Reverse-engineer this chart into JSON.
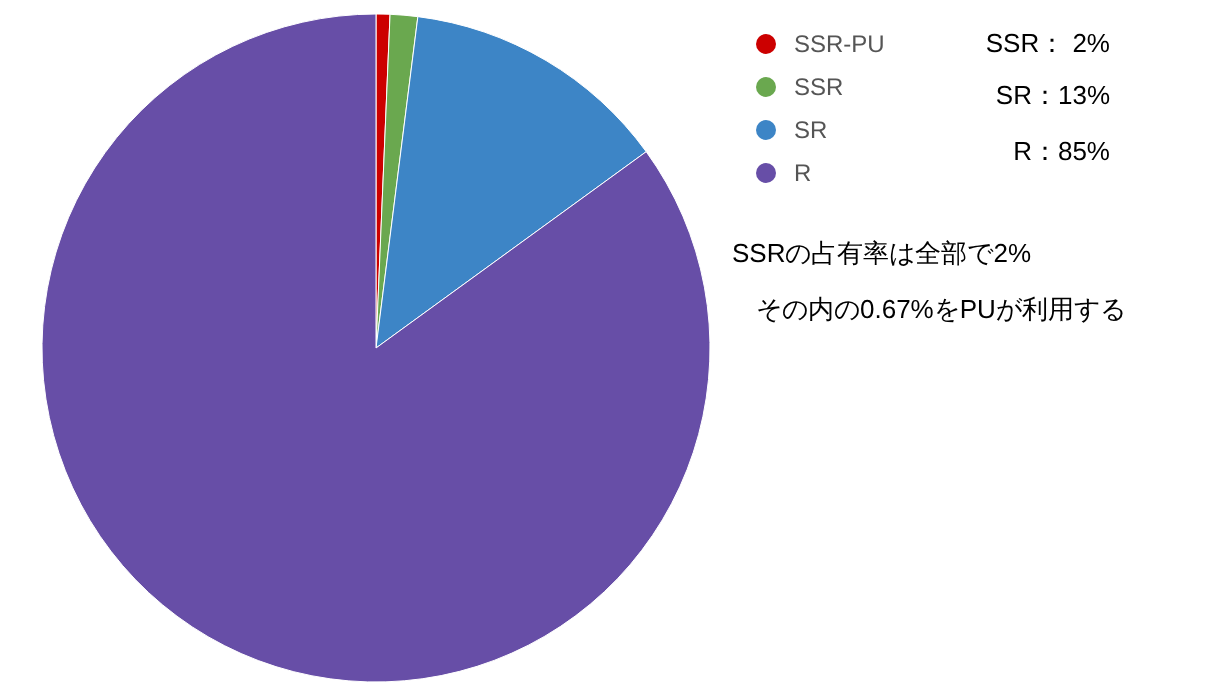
{
  "chart_data": {
    "type": "pie",
    "categories": [
      "SSR-PU",
      "SSR",
      "SR",
      "R"
    ],
    "values": [
      0.67,
      1.33,
      13,
      85
    ],
    "colors": [
      "#cc0000",
      "#6aa84f",
      "#3d85c6",
      "#674ea7"
    ],
    "legend": "right",
    "annotations": [
      "SSR：  2%",
      "SR：13%",
      "R：85%",
      "SSRの占有率は全部で2%",
      "その内の0.67%をPUが利用する"
    ]
  }
}
